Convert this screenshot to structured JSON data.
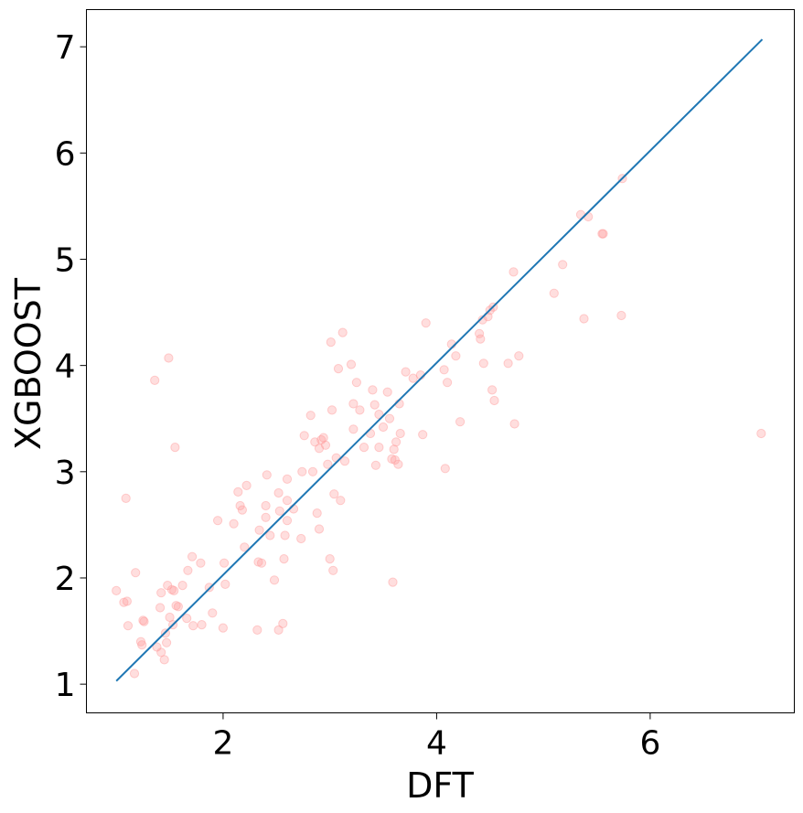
{
  "chart_data": {
    "type": "scatter",
    "xlabel": "DFT",
    "ylabel": "XGBOOST",
    "xlim": [
      0.72,
      7.35
    ],
    "ylim": [
      0.73,
      7.35
    ],
    "xticks": [
      2,
      4,
      6
    ],
    "yticks": [
      1,
      2,
      3,
      4,
      5,
      6,
      7
    ],
    "grid": false,
    "point_color": "#ff9999",
    "line_color": "#1f77b4",
    "reference_line": {
      "x": [
        1.0,
        7.05
      ],
      "y": [
        1.03,
        7.07
      ]
    },
    "points": [
      [
        1.0,
        1.88
      ],
      [
        1.07,
        1.77
      ],
      [
        1.09,
        2.75
      ],
      [
        1.1,
        1.78
      ],
      [
        1.11,
        1.55
      ],
      [
        1.17,
        1.1
      ],
      [
        1.18,
        2.05
      ],
      [
        1.23,
        1.4
      ],
      [
        1.24,
        1.37
      ],
      [
        1.25,
        1.6
      ],
      [
        1.26,
        1.59
      ],
      [
        1.36,
        3.86
      ],
      [
        1.38,
        1.35
      ],
      [
        1.41,
        1.72
      ],
      [
        1.42,
        1.86
      ],
      [
        1.42,
        1.3
      ],
      [
        1.45,
        1.23
      ],
      [
        1.46,
        1.48
      ],
      [
        1.47,
        1.39
      ],
      [
        1.48,
        1.93
      ],
      [
        1.49,
        4.07
      ],
      [
        1.5,
        1.63
      ],
      [
        1.52,
        1.89
      ],
      [
        1.53,
        1.56
      ],
      [
        1.54,
        1.88
      ],
      [
        1.55,
        3.23
      ],
      [
        1.56,
        1.74
      ],
      [
        1.58,
        1.73
      ],
      [
        1.62,
        1.93
      ],
      [
        1.66,
        1.62
      ],
      [
        1.67,
        2.07
      ],
      [
        1.71,
        2.2
      ],
      [
        1.72,
        1.55
      ],
      [
        1.79,
        2.14
      ],
      [
        1.8,
        1.56
      ],
      [
        1.87,
        1.91
      ],
      [
        1.9,
        1.67
      ],
      [
        1.95,
        2.54
      ],
      [
        2.0,
        1.53
      ],
      [
        2.01,
        2.14
      ],
      [
        2.02,
        1.94
      ],
      [
        2.1,
        2.51
      ],
      [
        2.14,
        2.81
      ],
      [
        2.16,
        2.68
      ],
      [
        2.18,
        2.64
      ],
      [
        2.2,
        2.29
      ],
      [
        2.22,
        2.87
      ],
      [
        2.32,
        1.51
      ],
      [
        2.33,
        2.15
      ],
      [
        2.36,
        2.14
      ],
      [
        2.34,
        2.45
      ],
      [
        2.4,
        2.57
      ],
      [
        2.4,
        2.68
      ],
      [
        2.41,
        2.97
      ],
      [
        2.44,
        2.4
      ],
      [
        2.48,
        1.98
      ],
      [
        2.52,
        1.51
      ],
      [
        2.52,
        2.8
      ],
      [
        2.53,
        2.63
      ],
      [
        2.56,
        1.57
      ],
      [
        2.57,
        2.18
      ],
      [
        2.58,
        2.4
      ],
      [
        2.6,
        2.54
      ],
      [
        2.6,
        2.93
      ],
      [
        2.6,
        2.73
      ],
      [
        2.66,
        2.65
      ],
      [
        2.73,
        2.37
      ],
      [
        2.74,
        3.0
      ],
      [
        2.76,
        3.34
      ],
      [
        2.82,
        3.53
      ],
      [
        2.84,
        3.0
      ],
      [
        2.86,
        3.28
      ],
      [
        2.88,
        2.61
      ],
      [
        2.9,
        3.22
      ],
      [
        2.9,
        2.46
      ],
      [
        2.92,
        3.3
      ],
      [
        2.94,
        3.32
      ],
      [
        2.96,
        3.25
      ],
      [
        2.98,
        3.07
      ],
      [
        3.0,
        2.18
      ],
      [
        3.01,
        4.22
      ],
      [
        3.02,
        3.58
      ],
      [
        3.03,
        2.07
      ],
      [
        3.04,
        2.79
      ],
      [
        3.06,
        3.13
      ],
      [
        3.08,
        3.97
      ],
      [
        3.1,
        2.73
      ],
      [
        3.12,
        4.31
      ],
      [
        3.14,
        3.1
      ],
      [
        3.2,
        4.01
      ],
      [
        3.22,
        3.64
      ],
      [
        3.22,
        3.4
      ],
      [
        3.25,
        3.84
      ],
      [
        3.28,
        3.58
      ],
      [
        3.32,
        3.23
      ],
      [
        3.38,
        3.36
      ],
      [
        3.4,
        3.77
      ],
      [
        3.42,
        3.63
      ],
      [
        3.43,
        3.06
      ],
      [
        3.46,
        3.54
      ],
      [
        3.46,
        3.23
      ],
      [
        3.5,
        3.42
      ],
      [
        3.54,
        3.75
      ],
      [
        3.56,
        3.5
      ],
      [
        3.58,
        3.12
      ],
      [
        3.59,
        1.96
      ],
      [
        3.6,
        3.21
      ],
      [
        3.61,
        3.11
      ],
      [
        3.62,
        3.28
      ],
      [
        3.64,
        3.07
      ],
      [
        3.65,
        3.64
      ],
      [
        3.66,
        3.36
      ],
      [
        3.71,
        3.94
      ],
      [
        3.78,
        3.88
      ],
      [
        3.85,
        3.91
      ],
      [
        3.87,
        3.35
      ],
      [
        3.9,
        4.4
      ],
      [
        4.07,
        3.96
      ],
      [
        4.08,
        3.03
      ],
      [
        4.1,
        3.84
      ],
      [
        4.14,
        4.2
      ],
      [
        4.18,
        4.09
      ],
      [
        4.22,
        3.47
      ],
      [
        4.4,
        4.3
      ],
      [
        4.41,
        4.25
      ],
      [
        4.43,
        4.43
      ],
      [
        4.44,
        4.02
      ],
      [
        4.48,
        4.46
      ],
      [
        4.5,
        4.52
      ],
      [
        4.52,
        3.77
      ],
      [
        4.53,
        4.55
      ],
      [
        4.54,
        3.67
      ],
      [
        4.67,
        4.02
      ],
      [
        4.72,
        4.88
      ],
      [
        4.73,
        3.45
      ],
      [
        4.77,
        4.09
      ],
      [
        5.1,
        4.68
      ],
      [
        5.18,
        4.95
      ],
      [
        5.35,
        5.42
      ],
      [
        5.38,
        4.44
      ],
      [
        5.42,
        5.4
      ],
      [
        5.55,
        5.24
      ],
      [
        5.56,
        5.24
      ],
      [
        5.73,
        4.47
      ],
      [
        5.74,
        5.76
      ],
      [
        7.04,
        3.36
      ]
    ]
  }
}
